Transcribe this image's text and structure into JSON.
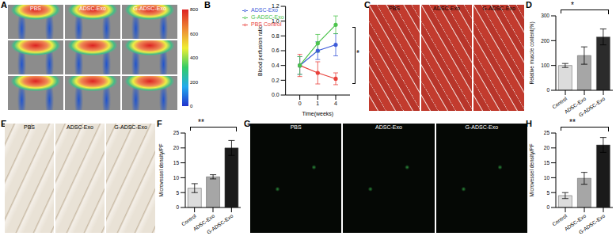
{
  "chart_data": [
    {
      "panel": "B",
      "type": "line",
      "x_label": "Time(weeks)",
      "y_label": "Blood perfusion ratio",
      "categories": [
        "0",
        "1",
        "4"
      ],
      "series": [
        {
          "name": "PBS Control",
          "color": "#e8403a",
          "values": [
            0.4,
            0.3,
            0.22
          ],
          "errors": [
            0.15,
            0.15,
            0.08
          ]
        },
        {
          "name": "ADSC-Exo",
          "color": "#3d5bd9",
          "values": [
            0.4,
            0.6,
            0.68
          ],
          "errors": [
            0.12,
            0.12,
            0.15
          ]
        },
        {
          "name": "G-ADSC-Exo",
          "color": "#4cc44c",
          "values": [
            0.4,
            0.7,
            0.95
          ],
          "errors": [
            0.12,
            0.12,
            0.12
          ]
        }
      ],
      "ylim": [
        0,
        1.2
      ],
      "yticks": [
        {
          "value": 0,
          "label": "0.0"
        },
        {
          "value": 0.2,
          "label": "0.2"
        },
        {
          "value": 0.4,
          "label": "0.4"
        },
        {
          "value": 0.6,
          "label": "0.6"
        },
        {
          "value": 0.8,
          "label": "0.8"
        },
        {
          "value": 1,
          "label": "1.0"
        },
        {
          "value": 1.2,
          "label": "1.2"
        }
      ],
      "legend": "upper left",
      "marker": "circle",
      "annotations": [
        "*"
      ]
    },
    {
      "panel": "D",
      "type": "bar",
      "y_label": "Relative muscle content(%)",
      "categories": [
        "Control",
        "ADSC-Exo",
        "G-ADSC-Exo"
      ],
      "values": [
        100,
        140,
        215
      ],
      "errors": [
        8,
        35,
        32
      ],
      "colors": [
        "#dcdcdc",
        "#a6a6a6",
        "#2b2b2b"
      ],
      "ylim": [
        0,
        300
      ],
      "yticks": [
        0,
        100,
        200,
        300
      ],
      "annotations": [
        "*"
      ]
    },
    {
      "panel": "F",
      "type": "bar",
      "y_label": "Microvessel density/PF",
      "categories": [
        "Control",
        "ADSC-Exo",
        "G-ADSC-Exo"
      ],
      "values": [
        6.5,
        10.3,
        20
      ],
      "errors": [
        1.5,
        0.7,
        2.5
      ],
      "colors": [
        "#dcdcdc",
        "#a6a6a6",
        "#1a1a1a"
      ],
      "ylim": [
        0,
        25
      ],
      "yticks": [
        0,
        5,
        10,
        15,
        20,
        25
      ],
      "annotations": [
        "**"
      ]
    },
    {
      "panel": "H",
      "type": "bar",
      "y_label": "Microvessel density/PF",
      "categories": [
        "Control",
        "ADSC-Exo",
        "G-ADSC-Exo"
      ],
      "values": [
        4,
        9.8,
        21
      ],
      "errors": [
        1,
        2,
        2.5
      ],
      "colors": [
        "#dcdcdc",
        "#a6a6a6",
        "#1a1a1a"
      ],
      "ylim": [
        0,
        25
      ],
      "yticks": [
        0,
        5,
        10,
        15,
        20,
        25
      ],
      "annotations": [
        "**"
      ]
    }
  ],
  "images": [
    {
      "panel": "A",
      "labels": [
        "PBS",
        "ADSC-Exo",
        "G-ADSC-Exo"
      ],
      "colorbar": {
        "range": [
          0,
          800
        ],
        "ticks": [
          0,
          200,
          400,
          600,
          800
        ]
      }
    },
    {
      "panel": "C",
      "labels": [
        "PBS",
        "ADSC-Exo",
        "G-ADSC-Exo"
      ]
    },
    {
      "panel": "E",
      "labels": [
        "PBS",
        "ADSC-Exo",
        "G-ADSC-Exo"
      ]
    },
    {
      "panel": "G",
      "labels": [
        "PBS",
        "ADSC-Exo",
        "G-ADSC-Exo"
      ]
    }
  ]
}
